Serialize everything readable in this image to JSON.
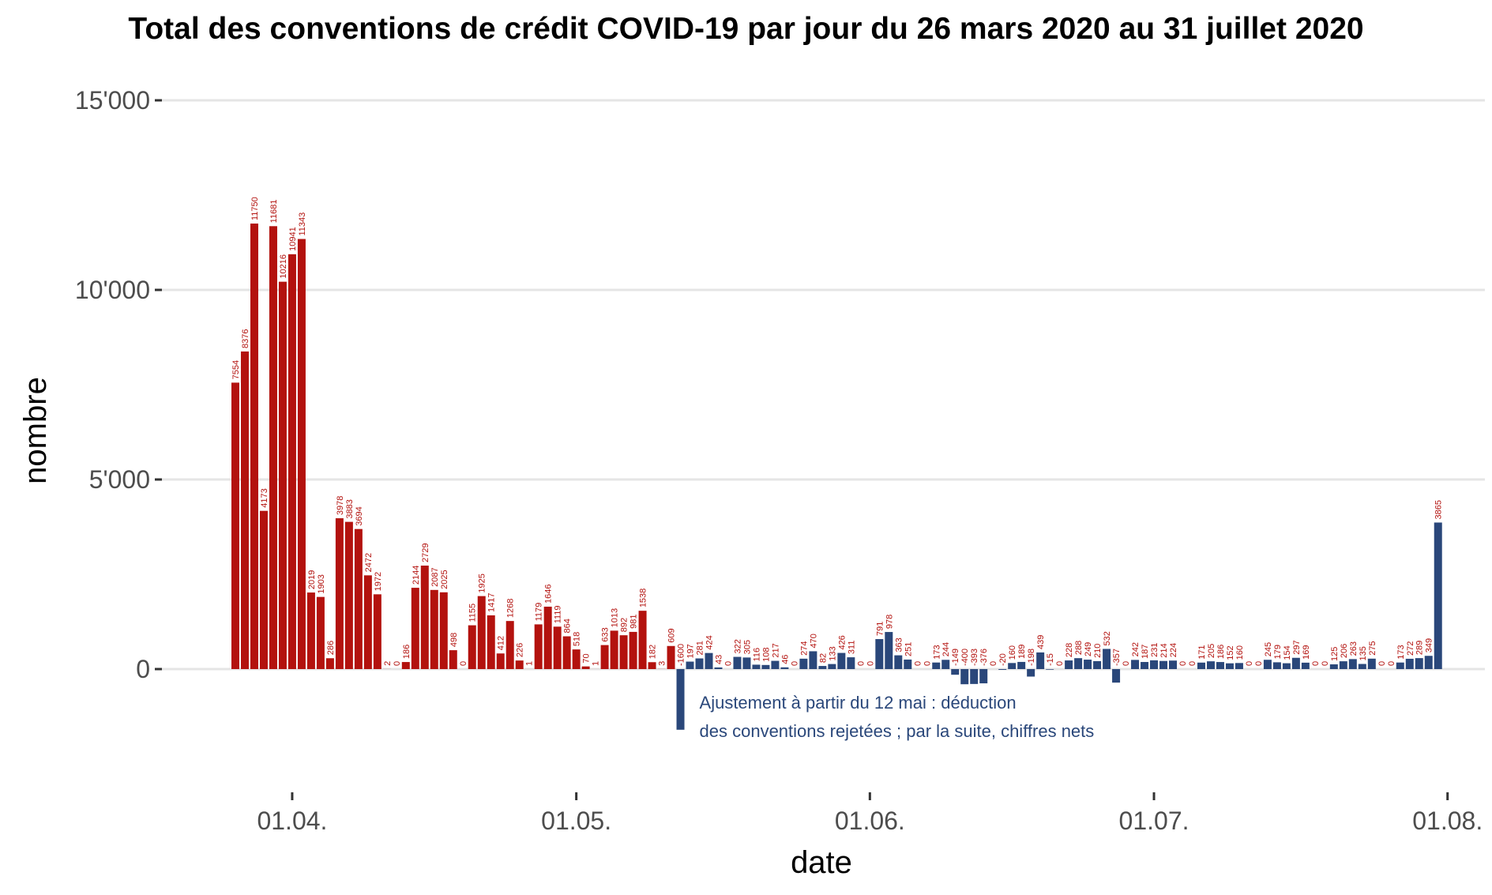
{
  "chart_data": {
    "type": "bar",
    "title": "Total des conventions de crédit COVID-19 par jour du 26 mars 2020 au 31 juillet 2020",
    "xlabel": "date",
    "ylabel": "nombre",
    "x_start": "2020-03-26",
    "x_end": "2020-07-31",
    "x_ticks": [
      {
        "date": "2020-04-01",
        "label": "01.04."
      },
      {
        "date": "2020-05-01",
        "label": "01.05."
      },
      {
        "date": "2020-06-01",
        "label": "01.06."
      },
      {
        "date": "2020-07-01",
        "label": "01.07."
      },
      {
        "date": "2020-08-01",
        "label": "01.08."
      }
    ],
    "ylim": [
      -3000,
      15500
    ],
    "y_ticks": [
      {
        "value": 0,
        "label": "0"
      },
      {
        "value": 5000,
        "label": "5'000"
      },
      {
        "value": 10000,
        "label": "10'000"
      },
      {
        "value": 15000,
        "label": "15'000"
      }
    ],
    "grid": "horizontal",
    "colors": {
      "before_adjustment": "#b3120e",
      "after_adjustment": "#2a477a"
    },
    "series": [
      {
        "period": "26.03. – 11.05.",
        "color": "#b3120e",
        "points": [
          {
            "date": "2020-03-26",
            "value": 7554
          },
          {
            "date": "2020-03-27",
            "value": 8376
          },
          {
            "date": "2020-03-28",
            "value": 11750
          },
          {
            "date": "2020-03-29",
            "value": 4173
          },
          {
            "date": "2020-03-30",
            "value": 11681
          },
          {
            "date": "2020-03-31",
            "value": 10216
          },
          {
            "date": "2020-04-01",
            "value": 10941
          },
          {
            "date": "2020-04-02",
            "value": 11343
          },
          {
            "date": "2020-04-03",
            "value": 2019
          },
          {
            "date": "2020-04-04",
            "value": 1903
          },
          {
            "date": "2020-04-05",
            "value": 286
          },
          {
            "date": "2020-04-06",
            "value": 3978
          },
          {
            "date": "2020-04-07",
            "value": 3883
          },
          {
            "date": "2020-04-08",
            "value": 3694
          },
          {
            "date": "2020-04-09",
            "value": 2472
          },
          {
            "date": "2020-04-10",
            "value": 1972
          },
          {
            "date": "2020-04-11",
            "value": 2
          },
          {
            "date": "2020-04-12",
            "value": 0
          },
          {
            "date": "2020-04-13",
            "value": 186
          },
          {
            "date": "2020-04-14",
            "value": 2144
          },
          {
            "date": "2020-04-15",
            "value": 2729
          },
          {
            "date": "2020-04-16",
            "value": 2087
          },
          {
            "date": "2020-04-17",
            "value": 2025
          },
          {
            "date": "2020-04-18",
            "value": 498
          },
          {
            "date": "2020-04-19",
            "value": 0
          },
          {
            "date": "2020-04-20",
            "value": 1155
          },
          {
            "date": "2020-04-21",
            "value": 1925
          },
          {
            "date": "2020-04-22",
            "value": 1417
          },
          {
            "date": "2020-04-23",
            "value": 412
          },
          {
            "date": "2020-04-24",
            "value": 1268
          },
          {
            "date": "2020-04-25",
            "value": 226
          },
          {
            "date": "2020-04-26",
            "value": 1
          },
          {
            "date": "2020-04-27",
            "value": 1179
          },
          {
            "date": "2020-04-28",
            "value": 1646
          },
          {
            "date": "2020-04-29",
            "value": 1119
          },
          {
            "date": "2020-04-30",
            "value": 864
          },
          {
            "date": "2020-05-01",
            "value": 518
          },
          {
            "date": "2020-05-02",
            "value": 70
          },
          {
            "date": "2020-05-03",
            "value": 1
          },
          {
            "date": "2020-05-04",
            "value": 633
          },
          {
            "date": "2020-05-05",
            "value": 1013
          },
          {
            "date": "2020-05-06",
            "value": 892
          },
          {
            "date": "2020-05-07",
            "value": 981
          },
          {
            "date": "2020-05-08",
            "value": 1538
          },
          {
            "date": "2020-05-09",
            "value": 182
          },
          {
            "date": "2020-05-10",
            "value": 3
          },
          {
            "date": "2020-05-11",
            "value": 609
          }
        ]
      },
      {
        "period": "12.05. – 31.07.",
        "color": "#2a477a",
        "points": [
          {
            "date": "2020-05-12",
            "value": -1600
          },
          {
            "date": "2020-05-13",
            "value": 197
          },
          {
            "date": "2020-05-14",
            "value": 281
          },
          {
            "date": "2020-05-15",
            "value": 424
          },
          {
            "date": "2020-05-16",
            "value": 43
          },
          {
            "date": "2020-05-17",
            "value": 0
          },
          {
            "date": "2020-05-18",
            "value": 322
          },
          {
            "date": "2020-05-19",
            "value": 305
          },
          {
            "date": "2020-05-20",
            "value": 116
          },
          {
            "date": "2020-05-21",
            "value": 108
          },
          {
            "date": "2020-05-22",
            "value": 217
          },
          {
            "date": "2020-05-23",
            "value": 46
          },
          {
            "date": "2020-05-24",
            "value": 0
          },
          {
            "date": "2020-05-25",
            "value": 274
          },
          {
            "date": "2020-05-26",
            "value": 470
          },
          {
            "date": "2020-05-27",
            "value": 82
          },
          {
            "date": "2020-05-28",
            "value": 133
          },
          {
            "date": "2020-05-29",
            "value": 426
          },
          {
            "date": "2020-05-30",
            "value": 311
          },
          {
            "date": "2020-05-31",
            "value": 0
          },
          {
            "date": "2020-06-01",
            "value": 0
          },
          {
            "date": "2020-06-02",
            "value": 791
          },
          {
            "date": "2020-06-03",
            "value": 978
          },
          {
            "date": "2020-06-04",
            "value": 363
          },
          {
            "date": "2020-06-05",
            "value": 251
          },
          {
            "date": "2020-06-06",
            "value": 0
          },
          {
            "date": "2020-06-07",
            "value": 0
          },
          {
            "date": "2020-06-08",
            "value": 173
          },
          {
            "date": "2020-06-09",
            "value": 244
          },
          {
            "date": "2020-06-10",
            "value": -149
          },
          {
            "date": "2020-06-11",
            "value": -400
          },
          {
            "date": "2020-06-12",
            "value": -393
          },
          {
            "date": "2020-06-13",
            "value": -376
          },
          {
            "date": "2020-06-14",
            "value": 0
          },
          {
            "date": "2020-06-15",
            "value": -20
          },
          {
            "date": "2020-06-16",
            "value": 160
          },
          {
            "date": "2020-06-17",
            "value": 189
          },
          {
            "date": "2020-06-18",
            "value": -198
          },
          {
            "date": "2020-06-19",
            "value": 439
          },
          {
            "date": "2020-06-20",
            "value": -15
          },
          {
            "date": "2020-06-21",
            "value": 0
          },
          {
            "date": "2020-06-22",
            "value": 228
          },
          {
            "date": "2020-06-23",
            "value": 288
          },
          {
            "date": "2020-06-24",
            "value": 249
          },
          {
            "date": "2020-06-25",
            "value": 210
          },
          {
            "date": "2020-06-26",
            "value": 532
          },
          {
            "date": "2020-06-27",
            "value": -357
          },
          {
            "date": "2020-06-28",
            "value": 0
          },
          {
            "date": "2020-06-29",
            "value": 242
          },
          {
            "date": "2020-06-30",
            "value": 187
          },
          {
            "date": "2020-07-01",
            "value": 231
          },
          {
            "date": "2020-07-02",
            "value": 214
          },
          {
            "date": "2020-07-03",
            "value": 224
          },
          {
            "date": "2020-07-04",
            "value": 0
          },
          {
            "date": "2020-07-05",
            "value": 0
          },
          {
            "date": "2020-07-06",
            "value": 171
          },
          {
            "date": "2020-07-07",
            "value": 205
          },
          {
            "date": "2020-07-08",
            "value": 186
          },
          {
            "date": "2020-07-09",
            "value": 152
          },
          {
            "date": "2020-07-10",
            "value": 160
          },
          {
            "date": "2020-07-11",
            "value": 0
          },
          {
            "date": "2020-07-12",
            "value": 0
          },
          {
            "date": "2020-07-13",
            "value": 245
          },
          {
            "date": "2020-07-14",
            "value": 179
          },
          {
            "date": "2020-07-15",
            "value": 154
          },
          {
            "date": "2020-07-16",
            "value": 297
          },
          {
            "date": "2020-07-17",
            "value": 169
          },
          {
            "date": "2020-07-18",
            "value": 0
          },
          {
            "date": "2020-07-19",
            "value": 0
          },
          {
            "date": "2020-07-20",
            "value": 125
          },
          {
            "date": "2020-07-21",
            "value": 206
          },
          {
            "date": "2020-07-22",
            "value": 263
          },
          {
            "date": "2020-07-23",
            "value": 135
          },
          {
            "date": "2020-07-24",
            "value": 275
          },
          {
            "date": "2020-07-25",
            "value": 0
          },
          {
            "date": "2020-07-26",
            "value": 0
          },
          {
            "date": "2020-07-27",
            "value": 173
          },
          {
            "date": "2020-07-28",
            "value": 272
          },
          {
            "date": "2020-07-29",
            "value": 289
          },
          {
            "date": "2020-07-30",
            "value": 349
          },
          {
            "date": "2020-07-31",
            "value": 3865
          }
        ]
      }
    ],
    "annotations": [
      {
        "date": "2020-05-12",
        "lines": [
          "Ajustement à partir du 12 mai : déduction",
          "des conventions rejetées ; par la suite, chiffres nets"
        ]
      }
    ]
  }
}
